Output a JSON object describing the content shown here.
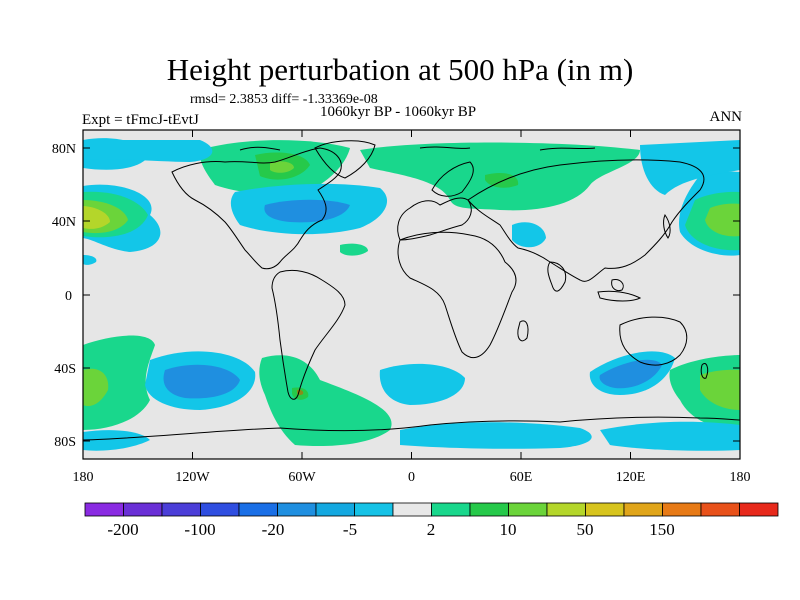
{
  "header": {
    "title": "Height perturbation at 500 hPa (in m)",
    "stats": "rmsd= 2.3853 diff= -1.33369e-08",
    "experiment": "Expt = tFmcJ-tEvtJ",
    "period": "1060kyr BP - 1060kyr BP",
    "season": "ANN"
  },
  "map": {
    "lat_ticks": [
      "80N",
      "40N",
      "0",
      "40S",
      "80S"
    ],
    "lon_ticks": [
      "180",
      "120W",
      "60W",
      "0",
      "60E",
      "120E",
      "180"
    ],
    "background_color": "#e6e6e6",
    "coastline_color": "#000000"
  },
  "colorbar": {
    "colors": [
      "#8a2be2",
      "#6a2fd6",
      "#4b3ed8",
      "#2f4ee0",
      "#1a6fe6",
      "#1f8fe0",
      "#13a8e0",
      "#16c2e6",
      "#e8e8e8",
      "#19d78c",
      "#26c94a",
      "#6bd43a",
      "#b4d62a",
      "#d7c41e",
      "#e0a51a",
      "#e77a16",
      "#e8511a",
      "#e7291b"
    ],
    "labels": [
      "-200",
      "-100",
      "-20",
      "-5",
      "2",
      "10",
      "50",
      "150"
    ]
  }
}
